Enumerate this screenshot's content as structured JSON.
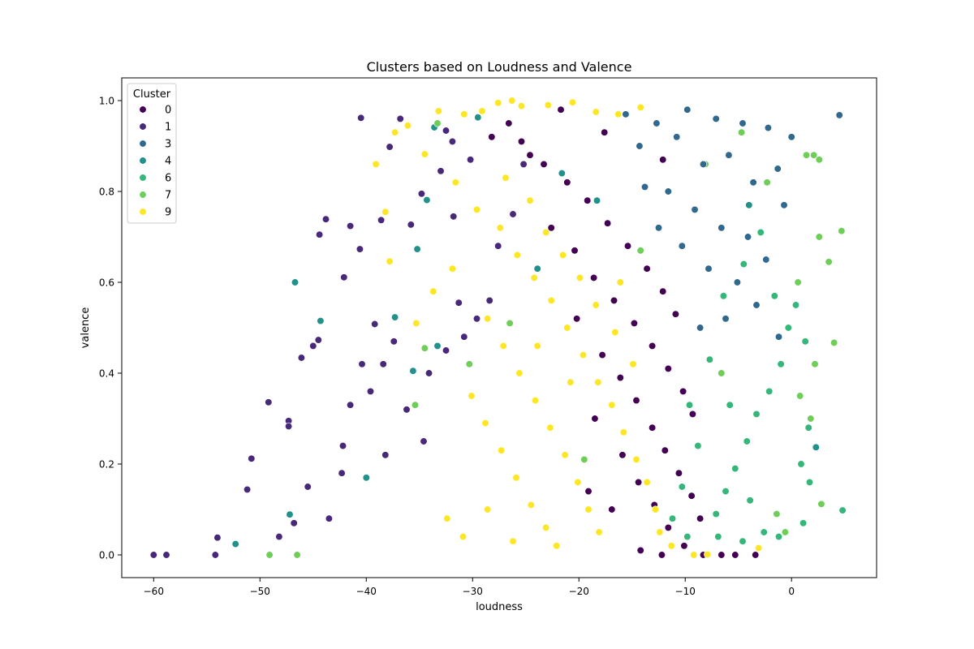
{
  "chart_data": {
    "type": "scatter",
    "title": "Clusters based on Loudness and Valence",
    "xlabel": "loudness",
    "ylabel": "valence",
    "xlim": [
      -63,
      8
    ],
    "ylim": [
      -0.05,
      1.05
    ],
    "x_ticks": [
      -60,
      -50,
      -40,
      -30,
      -20,
      -10,
      0
    ],
    "x_tick_labels": [
      "−60",
      "−50",
      "−40",
      "−30",
      "−20",
      "−10",
      "0"
    ],
    "y_ticks": [
      0.0,
      0.2,
      0.4,
      0.6,
      0.8,
      1.0
    ],
    "y_tick_labels": [
      "0.0",
      "0.2",
      "0.4",
      "0.6",
      "0.8",
      "1.0"
    ],
    "grid": false,
    "legend": {
      "title": "Cluster",
      "placement": "top-left",
      "entries": [
        {
          "label": "0",
          "color": "#440154"
        },
        {
          "label": "1",
          "color": "#482878"
        },
        {
          "label": "3",
          "color": "#31688e"
        },
        {
          "label": "4",
          "color": "#21918c"
        },
        {
          "label": "6",
          "color": "#35b779"
        },
        {
          "label": "7",
          "color": "#6ece58"
        },
        {
          "label": "9",
          "color": "#fde725"
        }
      ]
    },
    "series": [
      {
        "name": "1",
        "color": "#482878",
        "points": [
          [
            -60,
            0
          ],
          [
            -58.8,
            0
          ],
          [
            -54.2,
            0
          ],
          [
            -54,
            0.038
          ],
          [
            -51.2,
            0.144
          ],
          [
            -50.8,
            0.212
          ],
          [
            -49.2,
            0.336
          ],
          [
            -47.3,
            0.295
          ],
          [
            -47.3,
            0.283
          ],
          [
            -46.1,
            0.434
          ],
          [
            -45,
            0.46
          ],
          [
            -44.5,
            0.473
          ],
          [
            -44.4,
            0.705
          ],
          [
            -43.8,
            0.739
          ],
          [
            -42.1,
            0.611
          ],
          [
            -41.5,
            0.724
          ],
          [
            -40.6,
            0.673
          ],
          [
            -40.5,
            0.962
          ],
          [
            -39.2,
            0.508
          ],
          [
            -38.6,
            0.737
          ],
          [
            -37.8,
            0.898
          ],
          [
            -36.8,
            0.96
          ],
          [
            -35.8,
            0.727
          ],
          [
            -34.8,
            0.795
          ],
          [
            -32.5,
            0.934
          ],
          [
            -31.8,
            0.745
          ],
          [
            -33,
            0.845
          ],
          [
            -31.3,
            0.555
          ],
          [
            -42.3,
            0.18
          ],
          [
            -41.5,
            0.33
          ],
          [
            -40.4,
            0.42
          ],
          [
            -39.6,
            0.36
          ],
          [
            -38.4,
            0.42
          ],
          [
            -37.4,
            0.47
          ],
          [
            -45.5,
            0.15
          ],
          [
            -46.8,
            0.07
          ],
          [
            -48.2,
            0.04
          ],
          [
            -43.5,
            0.08
          ],
          [
            -42.2,
            0.24
          ],
          [
            -38.2,
            0.22
          ],
          [
            -36.2,
            0.32
          ],
          [
            -34.6,
            0.25
          ],
          [
            -34.1,
            0.4
          ],
          [
            -32.5,
            0.45
          ],
          [
            -30.8,
            0.48
          ],
          [
            -29.6,
            0.52
          ],
          [
            -28.4,
            0.56
          ],
          [
            -27.6,
            0.68
          ],
          [
            -26.2,
            0.75
          ],
          [
            -25.2,
            0.86
          ],
          [
            -31.9,
            0.91
          ],
          [
            -30.2,
            0.87
          ]
        ]
      },
      {
        "name": "4",
        "color": "#21918c",
        "points": [
          [
            -52.3,
            0.024
          ],
          [
            -46.7,
            0.6
          ],
          [
            -44.3,
            0.515
          ],
          [
            -47.2,
            0.089
          ],
          [
            -37.3,
            0.523
          ],
          [
            -35.2,
            0.673
          ],
          [
            -34.3,
            0.781
          ],
          [
            -33.6,
            0.941
          ],
          [
            -29.5,
            0.963
          ],
          [
            -35.6,
            0.405
          ],
          [
            -33.3,
            0.46
          ],
          [
            -40,
            0.17
          ],
          [
            -23.9,
            0.63
          ],
          [
            -18.3,
            0.78
          ],
          [
            -21.6,
            0.84
          ],
          [
            2.3,
            0.237
          ],
          [
            -4,
            0.77
          ]
        ]
      },
      {
        "name": "7",
        "color": "#6ece58",
        "points": [
          [
            -49.1,
            0
          ],
          [
            -46.5,
            0
          ],
          [
            1.4,
            0.88
          ],
          [
            2.1,
            0.88
          ],
          [
            2.6,
            0.87
          ],
          [
            2.6,
            0.7
          ],
          [
            3.5,
            0.645
          ],
          [
            4.7,
            0.713
          ],
          [
            4,
            0.467
          ],
          [
            2.2,
            0.42
          ],
          [
            1.8,
            0.3
          ],
          [
            2.8,
            0.112
          ],
          [
            -33.3,
            0.95
          ],
          [
            -34.5,
            0.455
          ],
          [
            -35.4,
            0.33
          ],
          [
            -30.3,
            0.42
          ],
          [
            -26.5,
            0.51
          ],
          [
            -19.5,
            0.21
          ],
          [
            -14.2,
            0.67
          ],
          [
            -8.1,
            0.86
          ],
          [
            -4.7,
            0.93
          ],
          [
            -2.3,
            0.82
          ],
          [
            0.6,
            0.6
          ],
          [
            0.8,
            0.35
          ],
          [
            -1.4,
            0.09
          ],
          [
            -0.6,
            0.05
          ],
          [
            -6.6,
            0.4
          ]
        ]
      },
      {
        "name": "6",
        "color": "#35b779",
        "points": [
          [
            4.8,
            0.098
          ],
          [
            1.7,
            0.16
          ],
          [
            1.6,
            0.28
          ],
          [
            1.3,
            0.47
          ],
          [
            0.4,
            0.55
          ],
          [
            0.9,
            0.2
          ],
          [
            1.1,
            0.07
          ],
          [
            -0.3,
            0.5
          ],
          [
            -1,
            0.42
          ],
          [
            -2.1,
            0.36
          ],
          [
            -3.3,
            0.31
          ],
          [
            -4.2,
            0.25
          ],
          [
            -5.3,
            0.19
          ],
          [
            -6.2,
            0.14
          ],
          [
            -7.1,
            0.09
          ],
          [
            -2.6,
            0.05
          ],
          [
            -3.9,
            0.12
          ],
          [
            -5.8,
            0.33
          ],
          [
            -7.7,
            0.43
          ],
          [
            -6.4,
            0.57
          ],
          [
            -4.5,
            0.64
          ],
          [
            -2.9,
            0.71
          ],
          [
            -1.6,
            0.57
          ],
          [
            -8.8,
            0.24
          ],
          [
            -9.6,
            0.33
          ],
          [
            -10.3,
            0.15
          ],
          [
            -11.2,
            0.08
          ],
          [
            -4.6,
            0.03
          ],
          [
            -6.9,
            0.04
          ],
          [
            -9.8,
            0.04
          ],
          [
            -1.2,
            0.04
          ]
        ]
      },
      {
        "name": "3",
        "color": "#31688e",
        "points": [
          [
            4.5,
            0.968
          ],
          [
            -9.8,
            0.98
          ],
          [
            -7.1,
            0.96
          ],
          [
            -4.6,
            0.95
          ],
          [
            -2.2,
            0.94
          ],
          [
            0,
            0.92
          ],
          [
            -1.3,
            0.85
          ],
          [
            -3.6,
            0.82
          ],
          [
            -5.9,
            0.88
          ],
          [
            -8.3,
            0.86
          ],
          [
            -10.8,
            0.92
          ],
          [
            -12.7,
            0.95
          ],
          [
            -14.3,
            0.9
          ],
          [
            -11.6,
            0.8
          ],
          [
            -9.1,
            0.76
          ],
          [
            -6.6,
            0.72
          ],
          [
            -4.1,
            0.7
          ],
          [
            -2.4,
            0.65
          ],
          [
            -0.7,
            0.77
          ],
          [
            -5.1,
            0.6
          ],
          [
            -7.8,
            0.63
          ],
          [
            -10.3,
            0.68
          ],
          [
            -12.5,
            0.72
          ],
          [
            -13.8,
            0.81
          ],
          [
            -8.6,
            0.5
          ],
          [
            -6.2,
            0.52
          ],
          [
            -3.3,
            0.55
          ],
          [
            -1.2,
            0.48
          ],
          [
            -15.6,
            0.97
          ]
        ]
      },
      {
        "name": "0",
        "color": "#440154",
        "points": [
          [
            -5.3,
            0
          ],
          [
            -3.4,
            0
          ],
          [
            -26.6,
            0.95
          ],
          [
            -25.4,
            0.91
          ],
          [
            -23.3,
            0.86
          ],
          [
            -21.1,
            0.82
          ],
          [
            -19.2,
            0.78
          ],
          [
            -17.3,
            0.73
          ],
          [
            -15.4,
            0.68
          ],
          [
            -13.6,
            0.63
          ],
          [
            -12.1,
            0.58
          ],
          [
            -10.9,
            0.53
          ],
          [
            -22.6,
            0.72
          ],
          [
            -20.4,
            0.67
          ],
          [
            -18.6,
            0.61
          ],
          [
            -16.7,
            0.56
          ],
          [
            -14.8,
            0.51
          ],
          [
            -13.1,
            0.46
          ],
          [
            -11.6,
            0.41
          ],
          [
            -10.2,
            0.36
          ],
          [
            -9.3,
            0.31
          ],
          [
            -17.8,
            0.44
          ],
          [
            -16.1,
            0.39
          ],
          [
            -14.6,
            0.34
          ],
          [
            -13.1,
            0.28
          ],
          [
            -11.9,
            0.23
          ],
          [
            -10.6,
            0.18
          ],
          [
            -9.4,
            0.13
          ],
          [
            -8.6,
            0.08
          ],
          [
            -15.9,
            0.22
          ],
          [
            -14.4,
            0.16
          ],
          [
            -12.9,
            0.11
          ],
          [
            -11.6,
            0.06
          ],
          [
            -10.1,
            0.02
          ],
          [
            -18.5,
            0.3
          ],
          [
            -20.2,
            0.52
          ],
          [
            -24.6,
            0.88
          ],
          [
            -28.2,
            0.92
          ],
          [
            -12.2,
            0
          ],
          [
            -8.3,
            0
          ],
          [
            -6.6,
            0
          ],
          [
            -14.2,
            0.01
          ],
          [
            -16.9,
            0.1
          ],
          [
            -19.1,
            0.14
          ],
          [
            -21.7,
            0.98
          ],
          [
            -17.6,
            0.93
          ],
          [
            -12.1,
            0.87
          ]
        ]
      },
      {
        "name": "9",
        "color": "#fde725",
        "points": [
          [
            -39.1,
            0.86
          ],
          [
            -38.2,
            0.755
          ],
          [
            -37.8,
            0.646
          ],
          [
            -37.3,
            0.93
          ],
          [
            -36.1,
            0.945
          ],
          [
            -34.5,
            0.882
          ],
          [
            -33.2,
            0.977
          ],
          [
            -30.8,
            0.97
          ],
          [
            -29.1,
            0.977
          ],
          [
            -27.6,
            0.995
          ],
          [
            -26.3,
            1
          ],
          [
            -25.4,
            0.988
          ],
          [
            -22.9,
            0.99
          ],
          [
            -20.6,
            0.996
          ],
          [
            -18.4,
            0.975
          ],
          [
            -16.3,
            0.97
          ],
          [
            -14.2,
            0.985
          ],
          [
            -31.6,
            0.82
          ],
          [
            -29.6,
            0.76
          ],
          [
            -27.4,
            0.72
          ],
          [
            -25.8,
            0.66
          ],
          [
            -24.2,
            0.61
          ],
          [
            -22.6,
            0.56
          ],
          [
            -21.1,
            0.5
          ],
          [
            -19.6,
            0.44
          ],
          [
            -18.2,
            0.38
          ],
          [
            -16.9,
            0.33
          ],
          [
            -15.8,
            0.27
          ],
          [
            -14.6,
            0.21
          ],
          [
            -13.6,
            0.16
          ],
          [
            -12.8,
            0.1
          ],
          [
            -12.4,
            0.05
          ],
          [
            -28.6,
            0.52
          ],
          [
            -27.1,
            0.46
          ],
          [
            -25.6,
            0.4
          ],
          [
            -24.1,
            0.34
          ],
          [
            -22.7,
            0.28
          ],
          [
            -21.3,
            0.22
          ],
          [
            -20.1,
            0.16
          ],
          [
            -19.1,
            0.1
          ],
          [
            -18.1,
            0.05
          ],
          [
            -30.1,
            0.35
          ],
          [
            -28.8,
            0.29
          ],
          [
            -27.3,
            0.23
          ],
          [
            -25.9,
            0.17
          ],
          [
            -24.5,
            0.11
          ],
          [
            -23.1,
            0.06
          ],
          [
            -22.1,
            0.02
          ],
          [
            -26.9,
            0.83
          ],
          [
            -24.6,
            0.78
          ],
          [
            -23.1,
            0.71
          ],
          [
            -21.5,
            0.66
          ],
          [
            -19.9,
            0.61
          ],
          [
            -18.4,
            0.55
          ],
          [
            -16.6,
            0.49
          ],
          [
            -31.9,
            0.63
          ],
          [
            -33.7,
            0.58
          ],
          [
            -35.3,
            0.51
          ],
          [
            -32.4,
            0.08
          ],
          [
            -30.9,
            0.04
          ],
          [
            -28.6,
            0.1
          ],
          [
            -26.2,
            0.03
          ],
          [
            -20.8,
            0.38
          ],
          [
            -23.9,
            0.46
          ],
          [
            -16.1,
            0.6
          ],
          [
            -14.9,
            0.42
          ],
          [
            -11.3,
            0.02
          ],
          [
            -9.2,
            0
          ],
          [
            -3.1,
            0.015
          ],
          [
            -7.9,
            0.001
          ]
        ]
      }
    ]
  }
}
